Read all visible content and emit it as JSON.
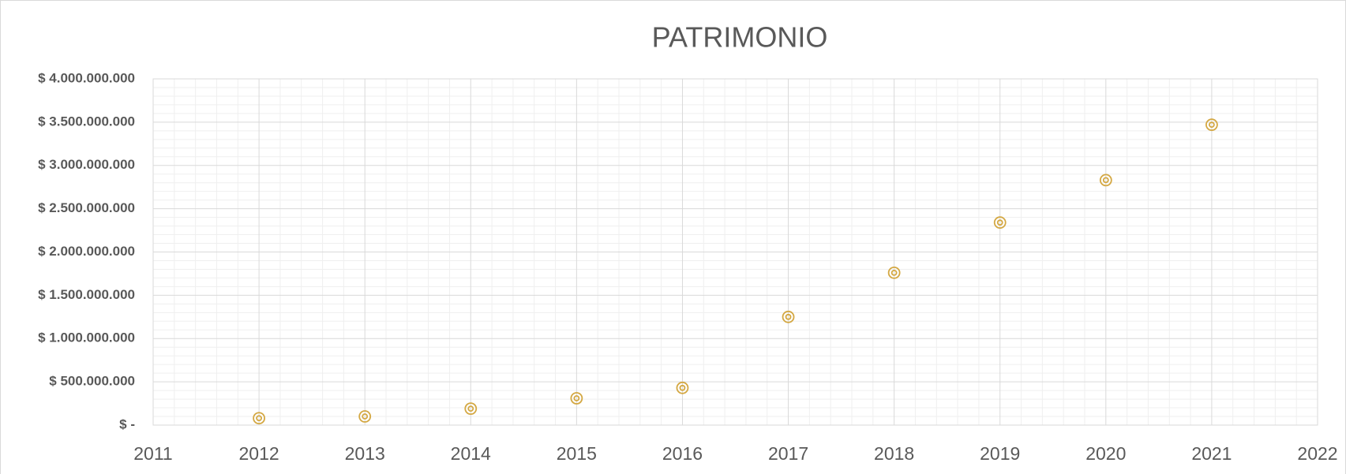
{
  "chart_data": {
    "type": "scatter",
    "title": "PATRIMONIO",
    "x": [
      2012,
      2013,
      2014,
      2015,
      2016,
      2017,
      2018,
      2019,
      2020,
      2021
    ],
    "values": [
      80000000,
      100000000,
      190000000,
      310000000,
      430000000,
      1250000000,
      1760000000,
      2340000000,
      2830000000,
      3470000000
    ],
    "color": "#d4a843",
    "xlim": [
      2011,
      2022
    ],
    "xticks": [
      2011,
      2012,
      2013,
      2014,
      2015,
      2016,
      2017,
      2018,
      2019,
      2020,
      2021,
      2022
    ],
    "ylim": [
      0,
      4000000000
    ],
    "yticks": [
      {
        "value": 0,
        "label": "$ -"
      },
      {
        "value": 500000000,
        "label": "$ 500.000.000"
      },
      {
        "value": 1000000000,
        "label": "$ 1.000.000.000"
      },
      {
        "value": 1500000000,
        "label": "$ 1.500.000.000"
      },
      {
        "value": 2000000000,
        "label": "$ 2.000.000.000"
      },
      {
        "value": 2500000000,
        "label": "$ 2.500.000.000"
      },
      {
        "value": 3000000000,
        "label": "$ 3.000.000.000"
      },
      {
        "value": 3500000000,
        "label": "$ 3.500.000.000"
      },
      {
        "value": 4000000000,
        "label": "$ 4.000.000.000"
      }
    ],
    "grid": true,
    "minor_grid": true
  }
}
